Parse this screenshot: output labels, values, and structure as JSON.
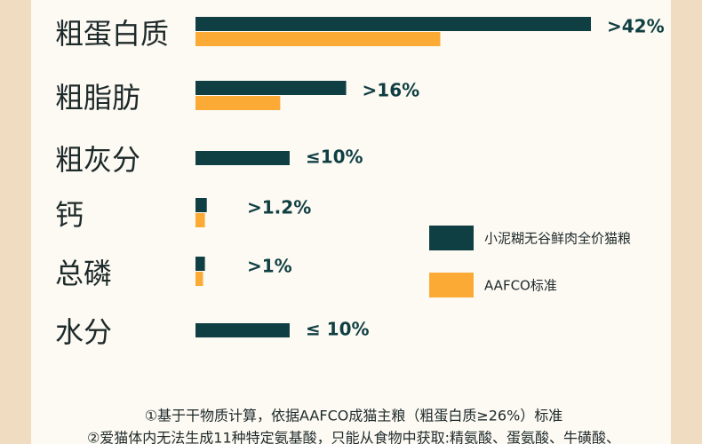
{
  "chart_data": {
    "type": "bar",
    "orientation": "horizontal",
    "categories": [
      "粗蛋白质",
      "粗脂肪",
      "粗灰分",
      "钙",
      "总磷",
      "水分"
    ],
    "series": [
      {
        "name": "小泥糊无谷鲜肉全价猫粮",
        "color": "#0f3f42",
        "values": [
          42,
          16,
          10,
          1.2,
          1,
          10
        ],
        "value_labels": [
          ">42%",
          ">16%",
          "≤10%",
          ">1.2%",
          ">1%",
          "≤ 10%"
        ]
      },
      {
        "name": "AAFCO标准",
        "color": "#fbab35",
        "values": [
          26,
          9,
          null,
          1,
          0.8,
          null
        ]
      }
    ],
    "notes": [
      "①基于干物质计算，依据AAFCO成猫主粮（粗蛋白质≥26%）标准",
      "②爱猫体内无法生成11种特定氨基酸，只能从食物中获取:精氨酸、蛋氨酸、牛磺酸、"
    ]
  }
}
